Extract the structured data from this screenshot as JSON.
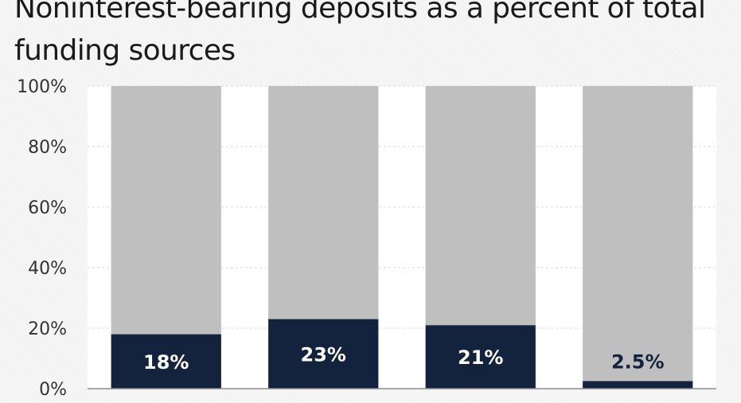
{
  "chart_data": {
    "type": "bar",
    "stacked": true,
    "title": "Noninterest-bearing deposits as a percent of total funding sources",
    "categories": [
      "",
      "",
      "",
      ""
    ],
    "series": [
      {
        "values": [
          18,
          23,
          21,
          2.5
        ],
        "color": "#13233d"
      },
      {
        "values": [
          82,
          77,
          79,
          97.5
        ],
        "color": "#bfbfbf"
      }
    ],
    "data_labels": [
      "18%",
      "23%",
      "21%",
      "2.5%"
    ],
    "y_ticks": [
      "0%",
      "20%",
      "40%",
      "60%",
      "80%",
      "100%"
    ],
    "ylim": [
      0,
      100
    ],
    "xlabel": "",
    "ylabel": "",
    "grid": true,
    "legend": "none",
    "colors": {
      "plot_background": "#ffffff",
      "gridline": "#d9d9d9",
      "axis": "#8c8c8c",
      "label_on_dark": "#ffffff",
      "label_on_light": "#13233d"
    }
  }
}
